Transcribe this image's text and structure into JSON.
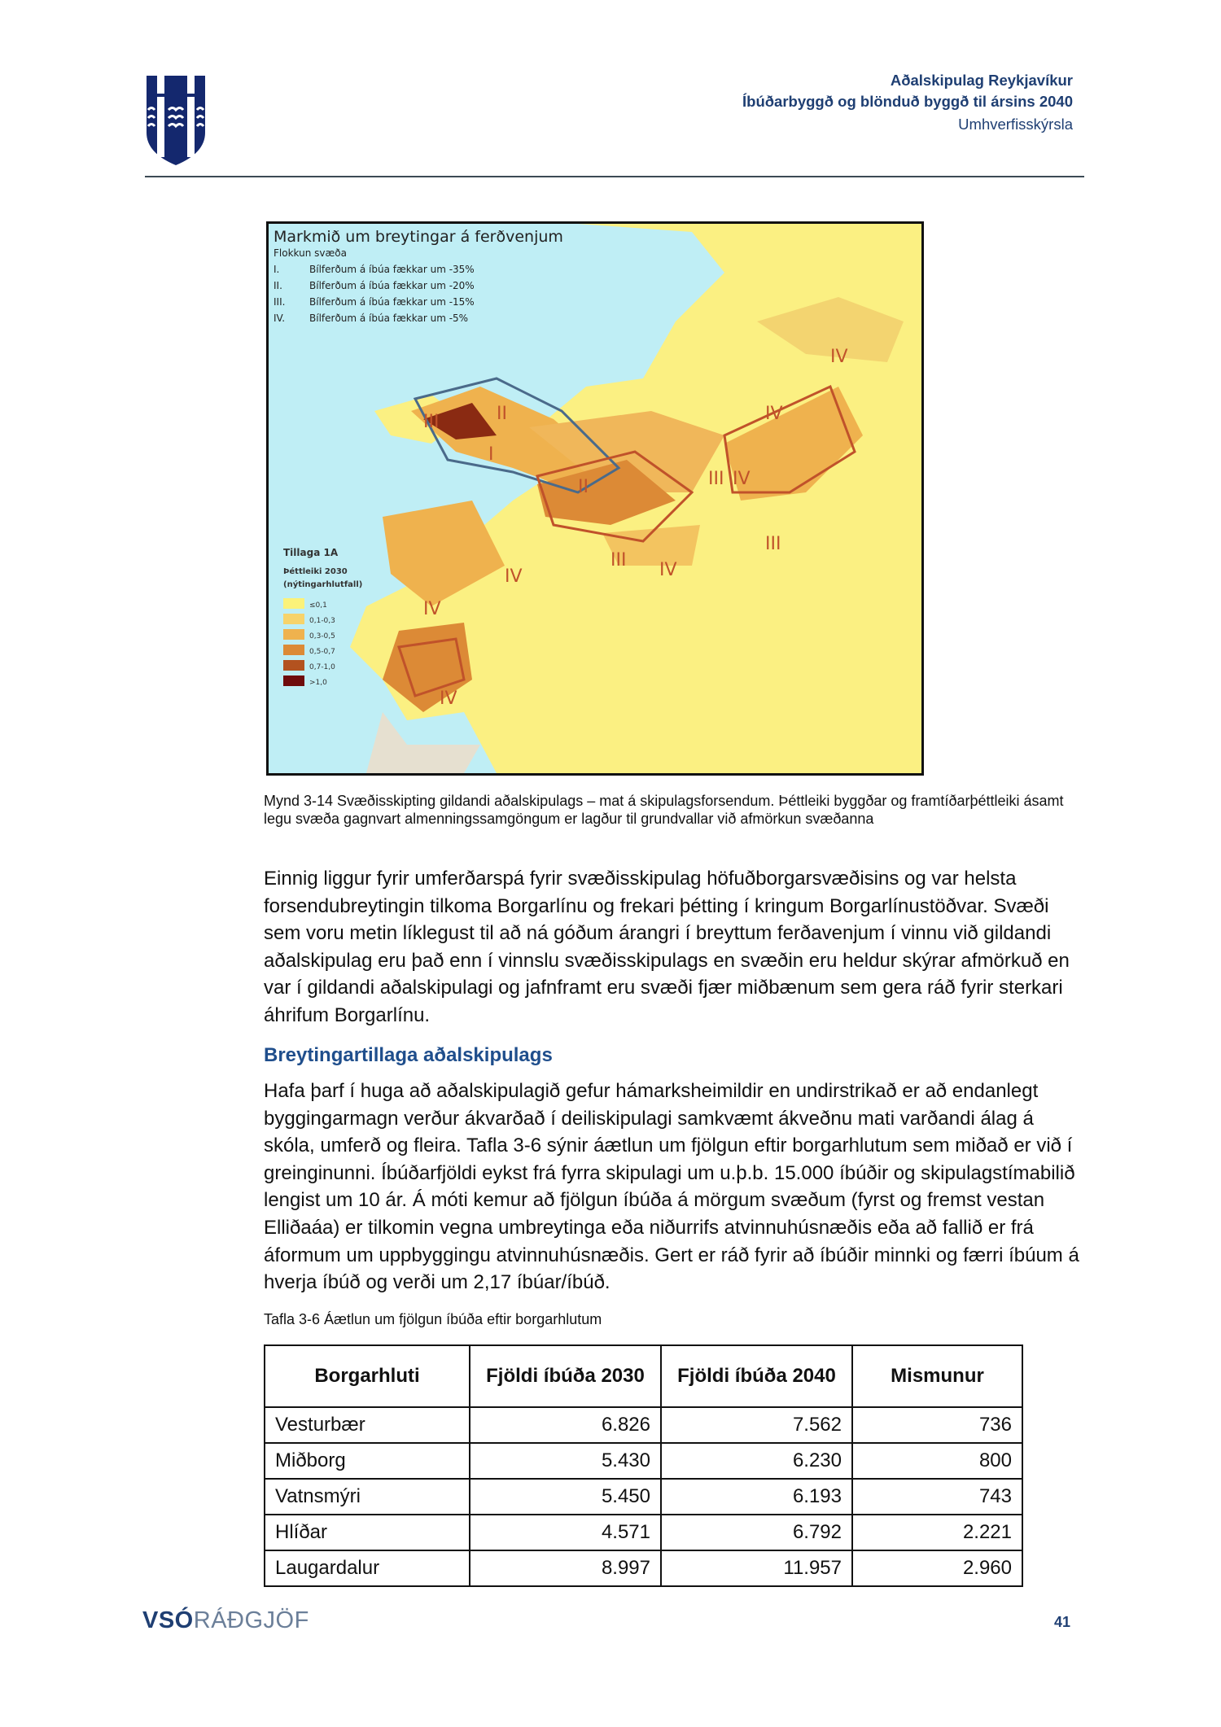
{
  "header": {
    "line1": "Aðalskipulag Reykjavíkur",
    "line2": "Íbúðarbyggð og blönduð byggð til ársins 2040",
    "line3": "Umhverfisskýrsla",
    "logo": "reykjavik-coat-of-arms",
    "brand_color": "#1f3f73"
  },
  "map": {
    "title": "Markmið um breytingar á ferðvenjum",
    "subtitle": "Flokkun svæða",
    "classes": [
      {
        "num": "I.",
        "text": "Bílferðum á íbúa fækkar um -35%"
      },
      {
        "num": "II.",
        "text": "Bílferðum á íbúa fækkar um -20%"
      },
      {
        "num": "III.",
        "text": "Bílferðum á íbúa fækkar um -15%"
      },
      {
        "num": "IV.",
        "text": "Bílferðum á íbúa fækkar um -5%"
      }
    ],
    "legend_title": "Tillaga 1A",
    "legend_subtitle": "Þéttleiki 2030",
    "legend_unit": "(nýtingarhlutfall)",
    "legend": [
      {
        "label": "≤0,1",
        "color": "#fbf27a"
      },
      {
        "label": "0,1-0,3",
        "color": "#f7d36a"
      },
      {
        "label": "0,3-0,5",
        "color": "#efb24e"
      },
      {
        "label": "0,5-0,7",
        "color": "#dc8a36"
      },
      {
        "label": "0,7-1,0",
        "color": "#b3521f"
      },
      {
        "label": ">1,0",
        "color": "#6e0c0c"
      }
    ],
    "zone_labels": [
      "I",
      "II",
      "II",
      "III",
      "III",
      "III",
      "IV",
      "IV",
      "IV",
      "IV",
      "IV",
      "IV",
      "IV",
      "III"
    ]
  },
  "caption": "Mynd 3-14 Svæðisskipting gildandi aðalskipulags – mat á skipulagsforsendum. Þéttleiki byggðar og framtíðarþéttleiki ásamt legu svæða gagnvart almenningssamgöngum er lagður til grundvallar við afmörkun svæðanna",
  "paragraph1": "Einnig liggur fyrir umferðarspá fyrir svæðisskipulag höfuðborgarsvæðisins og var helsta forsendubreytingin tilkoma Borgarlínu og frekari þétting í kringum Borgarlínustöðvar. Svæði sem voru metin líklegust til að ná góðum árangri í breyttum ferðavenjum í vinnu við gildandi aðalskipulag eru það enn í vinnslu svæðisskipulags en svæðin eru heldur skýrar afmörkuð en var í gildandi aðalskipulagi og jafnframt eru svæði fjær miðbænum sem gera ráð fyrir sterkari áhrifum Borgarlínu.",
  "heading": "Breytingartillaga aðalskipulags",
  "paragraph2": "Hafa þarf í huga að aðalskipulagið gefur hámarksheimildir en undirstrikað er að endanlegt byggingarmagn verður ákvarðað í deiliskipulagi samkvæmt ákveðnu mati varðandi álag á skóla, umferð og fleira. Tafla 3-6 sýnir áætlun um fjölgun eftir borgarhlutum sem miðað er við í greinginunni. Íbúðarfjöldi eykst frá fyrra skipulagi um u.þ.b. 15.000 íbúðir og skipulagstímabilið lengist um 10 ár. Á móti kemur að fjölgun íbúða á mörgum svæðum (fyrst og fremst vestan Elliðaáa) er tilkomin vegna umbreytinga eða niðurrifs atvinnuhúsnæðis eða að fallið er frá áformum um uppbyggingu atvinnuhúsnæðis. Gert er ráð fyrir að íbúðir minnki og færri íbúum á hverja íbúð og verði um 2,17 íbúar/íbúð.",
  "table": {
    "caption": "Tafla 3-6 Áætlun um fjölgun íbúða eftir borgarhlutum",
    "headers": [
      "Borgarhluti",
      "Fjöldi íbúða 2030",
      "Fjöldi íbúða 2040",
      "Mismunur"
    ],
    "rows": [
      [
        "Vesturbær",
        "6.826",
        "7.562",
        "736"
      ],
      [
        "Miðborg",
        "5.430",
        "6.230",
        "800"
      ],
      [
        "Vatnsmýri",
        "5.450",
        "6.193",
        "743"
      ],
      [
        "Hlíðar",
        "4.571",
        "6.792",
        "2.221"
      ],
      [
        "Laugardalur",
        "8.997",
        "11.957",
        "2.960"
      ]
    ]
  },
  "footer": {
    "brand_bold": "VSÓ",
    "brand_light": "RÁÐGJÖF",
    "page_number": "41"
  }
}
